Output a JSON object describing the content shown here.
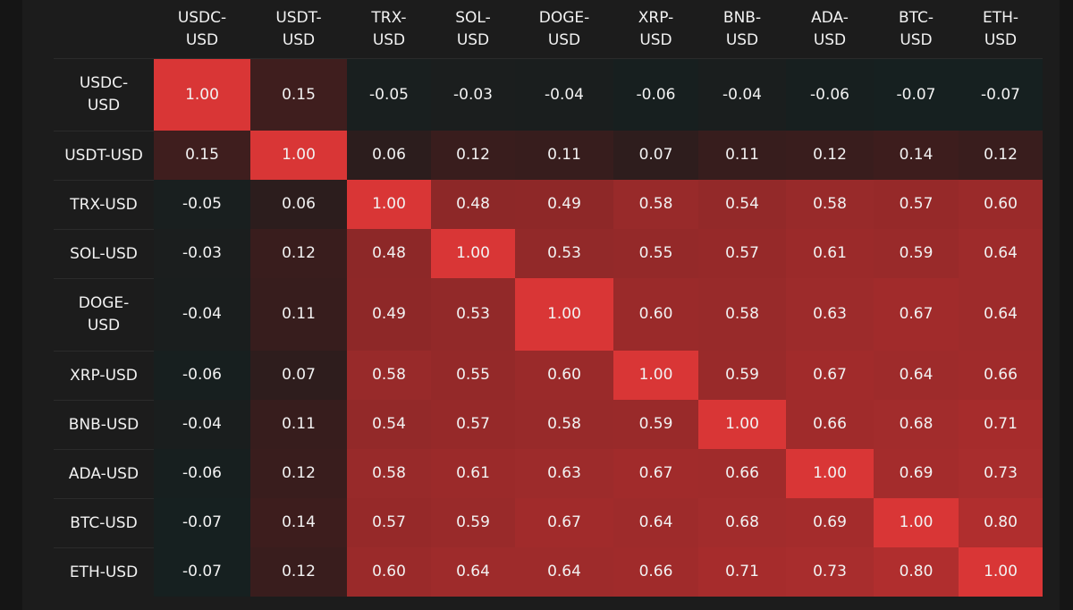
{
  "chart_data": {
    "type": "heatmap",
    "title": "",
    "row_labels": [
      "USDC-\nUSD",
      "USDT-USD",
      "TRX-USD",
      "SOL-USD",
      "DOGE-\nUSD",
      "XRP-USD",
      "BNB-USD",
      "ADA-USD",
      "BTC-USD",
      "ETH-USD"
    ],
    "col_labels": [
      "USDC-\nUSD",
      "USDT-\nUSD",
      "TRX-\nUSD",
      "SOL-\nUSD",
      "DOGE-\nUSD",
      "XRP-\nUSD",
      "BNB-\nUSD",
      "ADA-\nUSD",
      "BTC-\nUSD",
      "ETH-\nUSD"
    ],
    "values": [
      [
        "1.00",
        "0.15",
        "-0.05",
        "-0.03",
        "-0.04",
        "-0.06",
        "-0.04",
        "-0.06",
        "-0.07",
        "-0.07"
      ],
      [
        "0.15",
        "1.00",
        "0.06",
        "0.12",
        "0.11",
        "0.07",
        "0.11",
        "0.12",
        "0.14",
        "0.12"
      ],
      [
        "-0.05",
        "0.06",
        "1.00",
        "0.48",
        "0.49",
        "0.58",
        "0.54",
        "0.58",
        "0.57",
        "0.60"
      ],
      [
        "-0.03",
        "0.12",
        "0.48",
        "1.00",
        "0.53",
        "0.55",
        "0.57",
        "0.61",
        "0.59",
        "0.64"
      ],
      [
        "-0.04",
        "0.11",
        "0.49",
        "0.53",
        "1.00",
        "0.60",
        "0.58",
        "0.63",
        "0.67",
        "0.64"
      ],
      [
        "-0.06",
        "0.07",
        "0.58",
        "0.55",
        "0.60",
        "1.00",
        "0.59",
        "0.67",
        "0.64",
        "0.66"
      ],
      [
        "-0.04",
        "0.11",
        "0.54",
        "0.57",
        "0.58",
        "0.59",
        "1.00",
        "0.66",
        "0.68",
        "0.71"
      ],
      [
        "-0.06",
        "0.12",
        "0.58",
        "0.61",
        "0.63",
        "0.67",
        "0.66",
        "1.00",
        "0.69",
        "0.73"
      ],
      [
        "-0.07",
        "0.14",
        "0.57",
        "0.59",
        "0.67",
        "0.64",
        "0.68",
        "0.69",
        "1.00",
        "0.80"
      ],
      [
        "-0.07",
        "0.12",
        "0.60",
        "0.64",
        "0.64",
        "0.66",
        "0.71",
        "0.73",
        "0.80",
        "1.00"
      ]
    ],
    "colorscale": {
      "negative": "#162020",
      "zero": "#1f1c1c",
      "mid": "#8a2a2a",
      "max": "#d93636"
    },
    "zmin": -0.07,
    "zmax": 1.0
  }
}
